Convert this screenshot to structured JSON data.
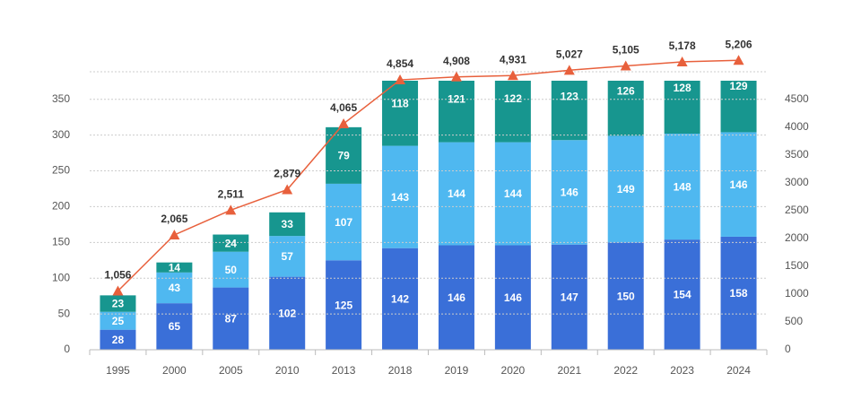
{
  "chart_data": {
    "type": "bar",
    "categories": [
      "1995",
      "2000",
      "2005",
      "2010",
      "2013",
      "2018",
      "2019",
      "2020",
      "2021",
      "2022",
      "2023",
      "2024"
    ],
    "stacked": true,
    "series": [
      {
        "color": "#3a6fd8",
        "values": [
          28,
          65,
          87,
          102,
          125,
          142,
          146,
          146,
          147,
          150,
          154,
          158
        ]
      },
      {
        "color": "#4fb8f0",
        "values": [
          25,
          43,
          50,
          57,
          107,
          143,
          144,
          144,
          146,
          149,
          148,
          146
        ]
      },
      {
        "color": "#17968f",
        "values": [
          23,
          14,
          24,
          33,
          79,
          118,
          121,
          122,
          123,
          126,
          128,
          129
        ]
      },
      {
        "type": "line",
        "axis": "y2",
        "color": "#e8603c",
        "marker": "triangle",
        "values": [
          1056,
          2065,
          2511,
          2879,
          4065,
          4854,
          4908,
          4931,
          5027,
          5105,
          5178,
          5206
        ],
        "value_labels": [
          "1,056",
          "2,065",
          "2,511",
          "2,879",
          "4,065",
          "4,854",
          "4,908",
          "4,931",
          "5,027",
          "5,105",
          "5,178",
          "5,206"
        ]
      }
    ],
    "ylim": [
      0,
      376
    ],
    "yticks": [
      0,
      50,
      100,
      150,
      200,
      250,
      300,
      350
    ],
    "y2lim": [
      0,
      5000
    ],
    "y2ticks": [
      0,
      500,
      1000,
      1500,
      2000,
      2500,
      3000,
      3500,
      4000,
      4500
    ],
    "grid": true
  }
}
